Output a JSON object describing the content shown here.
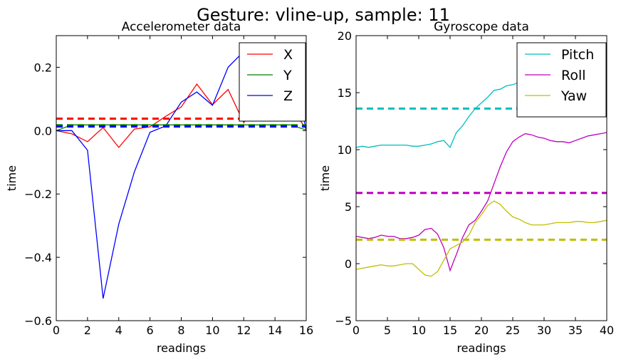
{
  "suptitle": "Gesture: vline-up, sample: 11",
  "chart_data": [
    {
      "type": "line",
      "title": "Accelerometer data",
      "xlabel": "readings",
      "ylabel": "time",
      "xlim": [
        0,
        16
      ],
      "ylim": [
        -0.6,
        0.3
      ],
      "xticks": [
        "0",
        "2",
        "4",
        "6",
        "8",
        "10",
        "12",
        "14",
        "16"
      ],
      "yticks": [
        "−0.6",
        "−0.4",
        "−0.2",
        "0.0",
        "0.2"
      ],
      "x": [
        0,
        1,
        2,
        3,
        4,
        5,
        6,
        7,
        8,
        9,
        10,
        11,
        12,
        13,
        14,
        15,
        16
      ],
      "series": [
        {
          "name": "X",
          "color": "#ff0000",
          "values": [
            0.0,
            -0.01,
            -0.035,
            0.01,
            -0.053,
            0.005,
            0.012,
            0.045,
            0.075,
            0.147,
            0.082,
            0.13,
            0.025,
            0.095,
            0.05,
            0.075,
            0.005
          ]
        },
        {
          "name": "Y",
          "color": "#008000",
          "values": [
            0.0,
            0.018,
            0.018,
            0.018,
            0.018,
            0.018,
            0.018,
            0.018,
            0.018,
            0.018,
            0.018,
            0.018,
            0.018,
            0.018,
            0.018,
            0.018,
            0.002
          ]
        },
        {
          "name": "Z",
          "color": "#0000ff",
          "values": [
            0.0,
            0.0,
            -0.062,
            -0.53,
            -0.295,
            -0.13,
            -0.005,
            0.015,
            0.09,
            0.122,
            0.08,
            0.2,
            0.25,
            0.27,
            0.27,
            0.26,
            0.0
          ]
        }
      ],
      "hlines": [
        {
          "color": "#ff0000",
          "value": 0.038
        },
        {
          "color": "#008000",
          "value": 0.017
        },
        {
          "color": "#0000ff",
          "value": 0.013
        }
      ],
      "legend": "top-right"
    },
    {
      "type": "line",
      "title": "Gyroscope data",
      "xlabel": "readings",
      "ylabel": "time",
      "xlim": [
        0,
        40
      ],
      "ylim": [
        -5,
        20
      ],
      "xticks": [
        "0",
        "5",
        "10",
        "15",
        "20",
        "25",
        "30",
        "35",
        "40"
      ],
      "yticks": [
        "−5",
        "0",
        "5",
        "10",
        "15",
        "20"
      ],
      "x": [
        0,
        1,
        2,
        3,
        4,
        5,
        6,
        7,
        8,
        9,
        10,
        11,
        12,
        13,
        14,
        15,
        16,
        17,
        18,
        19,
        20,
        21,
        22,
        23,
        24,
        25,
        26,
        27,
        28,
        29,
        30,
        31,
        32,
        33,
        34,
        35,
        36,
        37,
        38,
        39,
        40
      ],
      "series": [
        {
          "name": "Pitch",
          "color": "#00bfbf",
          "values": [
            10.2,
            10.3,
            10.2,
            10.3,
            10.4,
            10.4,
            10.4,
            10.4,
            10.4,
            10.3,
            10.3,
            10.4,
            10.5,
            10.7,
            10.8,
            10.2,
            11.5,
            12.1,
            12.9,
            13.6,
            14.1,
            14.6,
            15.2,
            15.3,
            15.6,
            15.7,
            15.9,
            16.0,
            16.2,
            16.4,
            16.6,
            16.8,
            16.8,
            16.9,
            17.0,
            17.1,
            17.1,
            17.2,
            17.2,
            17.3,
            17.4
          ]
        },
        {
          "name": "Roll",
          "color": "#bf00bf",
          "values": [
            2.4,
            2.3,
            2.2,
            2.3,
            2.5,
            2.4,
            2.4,
            2.2,
            2.2,
            2.3,
            2.5,
            3.0,
            3.1,
            2.6,
            1.4,
            -0.6,
            0.8,
            2.3,
            3.4,
            3.8,
            4.6,
            5.5,
            7.0,
            8.5,
            9.8,
            10.7,
            11.1,
            11.4,
            11.3,
            11.1,
            11.0,
            10.8,
            10.7,
            10.7,
            10.6,
            10.8,
            11.0,
            11.2,
            11.3,
            11.4,
            11.5
          ]
        },
        {
          "name": "Yaw",
          "color": "#bfbf00",
          "values": [
            -0.5,
            -0.4,
            -0.3,
            -0.2,
            -0.1,
            -0.2,
            -0.2,
            -0.1,
            0.0,
            0.0,
            -0.5,
            -1.0,
            -1.1,
            -0.7,
            0.3,
            1.3,
            1.6,
            1.9,
            2.5,
            3.6,
            4.3,
            5.1,
            5.5,
            5.2,
            4.6,
            4.1,
            3.9,
            3.6,
            3.4,
            3.4,
            3.4,
            3.5,
            3.6,
            3.6,
            3.6,
            3.7,
            3.7,
            3.6,
            3.6,
            3.7,
            3.8
          ]
        }
      ],
      "hlines": [
        {
          "color": "#00bfbf",
          "value": 13.6
        },
        {
          "color": "#bf00bf",
          "value": 6.2
        },
        {
          "color": "#bfbf00",
          "value": 2.1
        }
      ],
      "legend": "top-right"
    }
  ]
}
